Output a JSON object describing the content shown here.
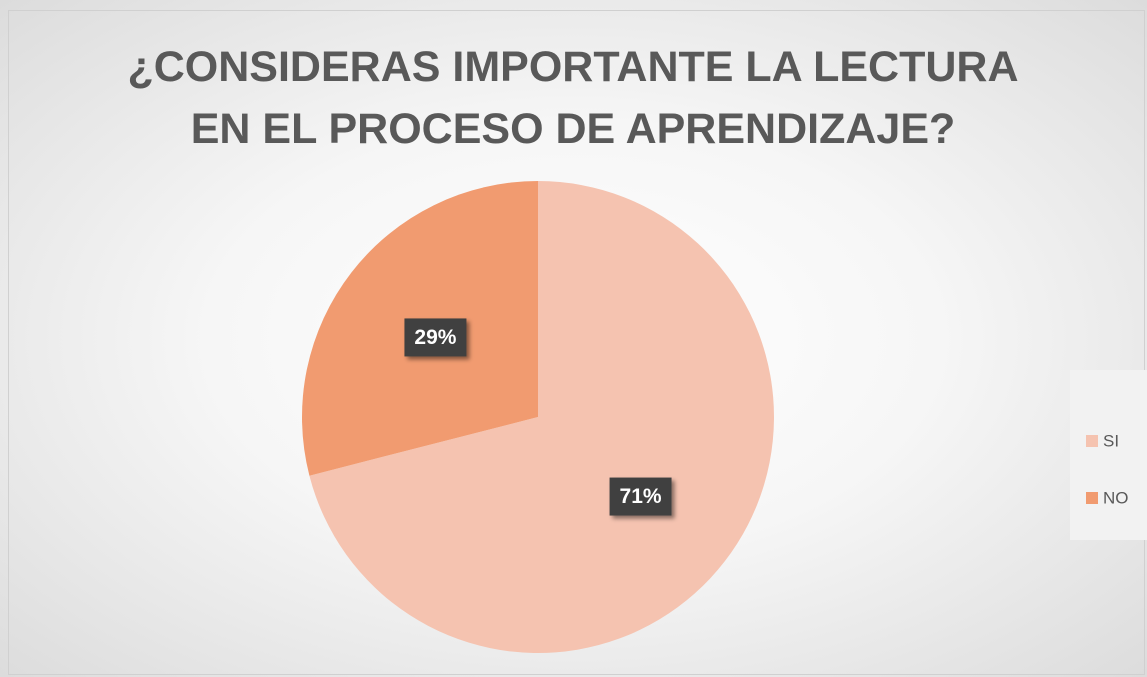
{
  "chart_data": {
    "type": "pie",
    "title": "¿CONSIDERAS IMPORTANTE LA LECTURA EN EL PROCESO DE APRENDIZAJE?",
    "categories": [
      "SI",
      "NO"
    ],
    "values": [
      71,
      29
    ],
    "value_labels": [
      "71%",
      "29%"
    ],
    "colors": [
      "#f5c3b0",
      "#f19b70"
    ],
    "legend": "right"
  }
}
